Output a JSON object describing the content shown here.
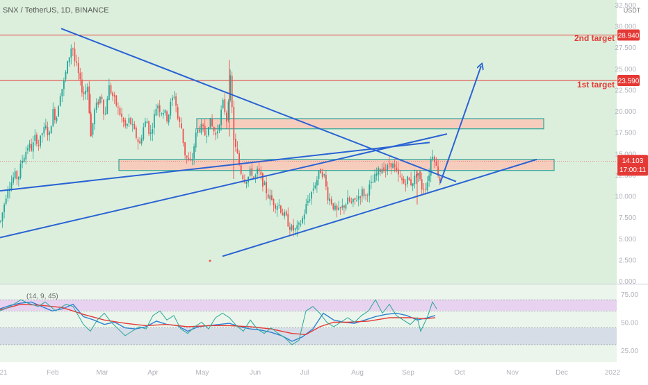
{
  "header": {
    "symbol_label": "SNX / TetherUS, 1D, BINANCE",
    "currency": "USDT"
  },
  "colors": {
    "bg_main": "#dcefdc",
    "bg_osc": "#ebf5eb",
    "up": "#26a69a",
    "down": "#ef5350",
    "trend": "#2962d4",
    "target": "#e53935",
    "zone_fill": "#f6cdbd",
    "zone_border": "#26a69a",
    "price_tag": "#e53935",
    "band_upper": "#e6c7f0",
    "band_lower": "#d4d8e6",
    "osc_line": "#2c7fd3",
    "osc_signal": "#e53935",
    "osc_noisy": "#26a69a"
  },
  "chart_data": [
    {
      "type": "candlestick",
      "symbol": "SNX / TetherUS",
      "interval": "1D",
      "exchange": "BINANCE",
      "ylim": [
        0,
        32.5
      ],
      "yticks": [
        "32.500",
        "30.000",
        "27.500",
        "25.000",
        "22.500",
        "20.000",
        "17.500",
        "15.000",
        "12.500",
        "10.000",
        "7.500",
        "5.000",
        "2.500",
        "0.000"
      ],
      "xlabels": [
        "21",
        "Feb",
        "Mar",
        "Apr",
        "May",
        "Jun",
        "Jul",
        "Aug",
        "Sep",
        "Oct",
        "Nov",
        "Dec",
        "2022"
      ],
      "current_price": "14.103",
      "countdown": "17:00:11",
      "levels": [
        {
          "label": "2nd target",
          "value": 28.94,
          "value_label": "28.940"
        },
        {
          "label": "1st target",
          "value": 23.59,
          "value_label": "23.590"
        }
      ],
      "zones": [
        {
          "from": 17.9,
          "to": 19.1
        },
        {
          "from": 13.0,
          "to": 14.3
        }
      ],
      "price_path": [
        [
          0,
          7
        ],
        [
          5,
          9
        ],
        [
          10,
          11
        ],
        [
          15,
          11.5
        ],
        [
          20,
          12.5
        ],
        [
          25,
          12
        ],
        [
          30,
          14
        ],
        [
          35,
          15
        ],
        [
          40,
          16
        ],
        [
          45,
          15.5
        ],
        [
          50,
          17
        ],
        [
          55,
          16
        ],
        [
          60,
          17.5
        ],
        [
          65,
          18
        ],
        [
          70,
          17
        ],
        [
          75,
          20
        ],
        [
          80,
          19
        ],
        [
          85,
          22
        ],
        [
          90,
          23
        ],
        [
          95,
          25
        ],
        [
          100,
          27
        ],
        [
          103,
          28
        ],
        [
          106,
          26
        ],
        [
          110,
          25
        ],
        [
          115,
          23
        ],
        [
          120,
          22
        ],
        [
          125,
          23
        ],
        [
          130,
          17
        ],
        [
          135,
          20
        ],
        [
          140,
          21
        ],
        [
          145,
          22
        ],
        [
          150,
          19
        ],
        [
          155,
          23
        ],
        [
          160,
          22
        ],
        [
          165,
          21
        ],
        [
          170,
          20
        ],
        [
          175,
          19
        ],
        [
          180,
          18
        ],
        [
          185,
          19
        ],
        [
          190,
          18
        ],
        [
          195,
          17
        ],
        [
          200,
          16
        ],
        [
          205,
          18
        ],
        [
          210,
          19
        ],
        [
          215,
          17
        ],
        [
          220,
          19
        ],
        [
          225,
          21
        ],
        [
          230,
          20
        ],
        [
          235,
          20
        ],
        [
          240,
          19
        ],
        [
          245,
          21
        ],
        [
          250,
          22
        ],
        [
          255,
          19
        ],
        [
          260,
          18
        ],
        [
          265,
          15
        ],
        [
          270,
          14
        ],
        [
          275,
          14
        ],
        [
          280,
          17
        ],
        [
          285,
          18
        ],
        [
          290,
          18
        ],
        [
          295,
          17
        ],
        [
          300,
          19
        ],
        [
          305,
          18
        ],
        [
          310,
          17
        ],
        [
          315,
          19
        ],
        [
          320,
          21
        ],
        [
          325,
          19
        ],
        [
          330,
          24
        ],
        [
          333,
          20
        ],
        [
          336,
          16
        ],
        [
          340,
          15
        ],
        [
          345,
          13
        ],
        [
          350,
          12
        ],
        [
          355,
          12
        ],
        [
          360,
          13
        ],
        [
          365,
          12
        ],
        [
          370,
          13
        ],
        [
          375,
          12
        ],
        [
          380,
          11
        ],
        [
          385,
          10
        ],
        [
          390,
          9.5
        ],
        [
          395,
          9
        ],
        [
          400,
          9
        ],
        [
          405,
          8
        ],
        [
          410,
          7.5
        ],
        [
          415,
          6.5
        ],
        [
          420,
          6
        ],
        [
          425,
          6
        ],
        [
          430,
          6.5
        ],
        [
          435,
          7.5
        ],
        [
          440,
          9
        ],
        [
          445,
          10
        ],
        [
          450,
          11
        ],
        [
          455,
          12
        ],
        [
          460,
          13
        ],
        [
          465,
          12.5
        ],
        [
          470,
          10
        ],
        [
          475,
          9.5
        ],
        [
          480,
          8.5
        ],
        [
          485,
          8
        ],
        [
          490,
          8.5
        ],
        [
          495,
          9
        ],
        [
          500,
          9.5
        ],
        [
          505,
          9
        ],
        [
          510,
          9.5
        ],
        [
          515,
          10
        ],
        [
          520,
          10.5
        ],
        [
          525,
          10
        ],
        [
          530,
          11
        ],
        [
          535,
          11.5
        ],
        [
          540,
          12.5
        ],
        [
          545,
          13
        ],
        [
          550,
          13.5
        ],
        [
          555,
          13
        ],
        [
          560,
          14
        ],
        [
          565,
          13.5
        ],
        [
          570,
          12.5
        ],
        [
          575,
          12
        ],
        [
          580,
          11.5
        ],
        [
          585,
          12
        ],
        [
          590,
          11.5
        ],
        [
          595,
          12
        ],
        [
          600,
          13
        ],
        [
          605,
          11
        ],
        [
          610,
          11
        ],
        [
          615,
          12
        ],
        [
          620,
          15
        ],
        [
          623,
          15
        ],
        [
          626,
          13.5
        ],
        [
          630,
          12.5
        ],
        [
          633,
          11.5
        ]
      ],
      "lines": [
        {
          "from": [
            88,
            29.7
          ],
          "to": [
            656,
            11.7
          ]
        },
        {
          "from": [
            0,
            10.6
          ],
          "to": [
            618,
            16.3
          ]
        },
        {
          "from": [
            0,
            5.1
          ],
          "to": [
            643,
            17.3
          ]
        },
        {
          "from": [
            320,
            2.9
          ],
          "to": [
            772,
            14.3
          ]
        },
        {
          "from": [
            633,
            11.5
          ],
          "to": [
            692,
            25.3
          ],
          "arrow": true
        }
      ]
    },
    {
      "type": "line",
      "indicator": "Oscillator",
      "params_label": "(14, 9, 45)",
      "ylim": [
        20,
        80
      ],
      "yticks": [
        "75.00",
        "50.00",
        "25.00"
      ],
      "bands": {
        "upper": [
          70,
          60
        ],
        "lower": [
          45,
          30
        ]
      },
      "series": [
        {
          "points": [
            [
              0,
              62
            ],
            [
              15,
              65
            ],
            [
              30,
              67
            ],
            [
              45,
              68
            ],
            [
              60,
              64
            ],
            [
              75,
              60
            ],
            [
              90,
              62
            ],
            [
              105,
              66
            ],
            [
              120,
              55
            ],
            [
              135,
              52
            ],
            [
              150,
              48
            ],
            [
              165,
              50
            ],
            [
              180,
              45
            ],
            [
              195,
              44
            ],
            [
              210,
              46
            ],
            [
              225,
              51
            ],
            [
              240,
              48
            ],
            [
              255,
              47
            ],
            [
              270,
              42
            ],
            [
              285,
              46
            ],
            [
              300,
              47
            ],
            [
              315,
              48
            ],
            [
              330,
              49
            ],
            [
              345,
              46
            ],
            [
              360,
              44
            ],
            [
              375,
              43
            ],
            [
              390,
              41
            ],
            [
              405,
              38
            ],
            [
              420,
              33
            ],
            [
              435,
              37
            ],
            [
              450,
              44
            ],
            [
              465,
              58
            ],
            [
              480,
              52
            ],
            [
              495,
              50
            ],
            [
              510,
              49
            ],
            [
              525,
              52
            ],
            [
              540,
              55
            ],
            [
              555,
              57
            ],
            [
              570,
              58
            ],
            [
              585,
              56
            ],
            [
              600,
              52
            ],
            [
              615,
              54
            ],
            [
              626,
              56
            ]
          ]
        },
        {
          "points": [
            [
              0,
              61
            ],
            [
              30,
              66
            ],
            [
              60,
              65
            ],
            [
              90,
              63
            ],
            [
              120,
              57
            ],
            [
              150,
              52
            ],
            [
              180,
              49
            ],
            [
              210,
              47
            ],
            [
              240,
              48
            ],
            [
              270,
              46
            ],
            [
              300,
              47
            ],
            [
              330,
              47
            ],
            [
              360,
              46
            ],
            [
              390,
              44
            ],
            [
              420,
              40
            ],
            [
              440,
              39
            ],
            [
              460,
              46
            ],
            [
              480,
              50
            ],
            [
              500,
              50
            ],
            [
              530,
              51
            ],
            [
              560,
              54
            ],
            [
              590,
              54
            ],
            [
              610,
              53
            ],
            [
              626,
              54
            ]
          ]
        },
        {
          "points": [
            [
              0,
              60
            ],
            [
              15,
              64
            ],
            [
              30,
              70
            ],
            [
              40,
              67
            ],
            [
              55,
              64
            ],
            [
              65,
              68
            ],
            [
              80,
              60
            ],
            [
              95,
              66
            ],
            [
              105,
              64
            ],
            [
              120,
              48
            ],
            [
              130,
              42
            ],
            [
              140,
              52
            ],
            [
              150,
              58
            ],
            [
              160,
              50
            ],
            [
              170,
              44
            ],
            [
              180,
              38
            ],
            [
              190,
              42
            ],
            [
              200,
              46
            ],
            [
              210,
              44
            ],
            [
              220,
              56
            ],
            [
              230,
              60
            ],
            [
              240,
              52
            ],
            [
              250,
              56
            ],
            [
              260,
              44
            ],
            [
              270,
              40
            ],
            [
              280,
              46
            ],
            [
              290,
              50
            ],
            [
              300,
              44
            ],
            [
              310,
              54
            ],
            [
              320,
              58
            ],
            [
              330,
              54
            ],
            [
              340,
              47
            ],
            [
              350,
              42
            ],
            [
              360,
              52
            ],
            [
              370,
              44
            ],
            [
              380,
              40
            ],
            [
              390,
              45
            ],
            [
              400,
              40
            ],
            [
              410,
              36
            ],
            [
              420,
              30
            ],
            [
              430,
              34
            ],
            [
              440,
              60
            ],
            [
              450,
              64
            ],
            [
              460,
              58
            ],
            [
              470,
              50
            ],
            [
              480,
              46
            ],
            [
              490,
              50
            ],
            [
              500,
              54
            ],
            [
              510,
              50
            ],
            [
              520,
              56
            ],
            [
              530,
              60
            ],
            [
              540,
              70
            ],
            [
              550,
              58
            ],
            [
              560,
              66
            ],
            [
              570,
              56
            ],
            [
              580,
              52
            ],
            [
              590,
              48
            ],
            [
              600,
              54
            ],
            [
              605,
              42
            ],
            [
              615,
              55
            ],
            [
              622,
              68
            ],
            [
              628,
              62
            ]
          ]
        }
      ]
    }
  ]
}
